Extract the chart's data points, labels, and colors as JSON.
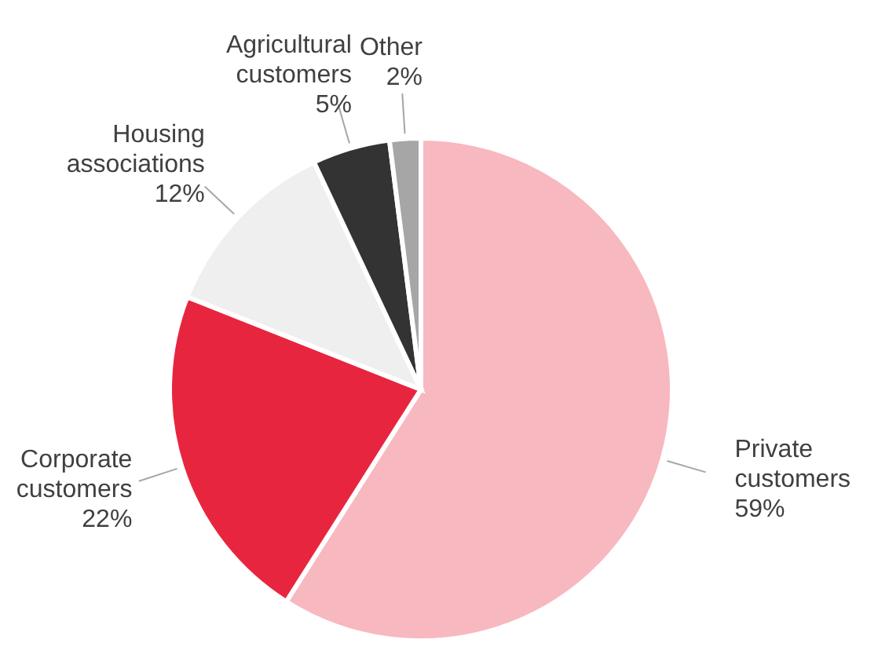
{
  "chart_data": {
    "type": "pie",
    "categories": [
      "Private customers",
      "Corporate customers",
      "Housing associations",
      "Agricultural customers",
      "Other"
    ],
    "values": [
      59,
      22,
      12,
      5,
      2
    ],
    "colors": [
      "#f8b8c0",
      "#e8253f",
      "#efefef",
      "#333333",
      "#a6a6a6"
    ],
    "value_labels": [
      "59%",
      "22%",
      "12%",
      "5%",
      "2%"
    ]
  }
}
